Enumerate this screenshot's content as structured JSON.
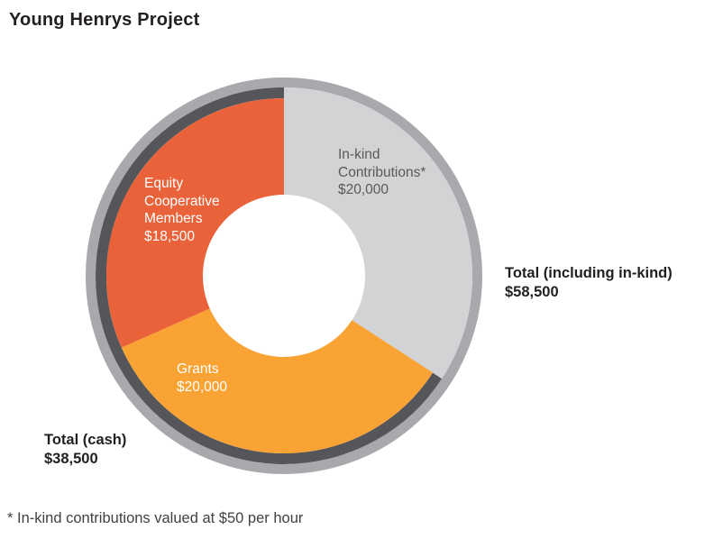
{
  "title": "Young Henrys Project",
  "chart_data": {
    "type": "pie",
    "subtype": "donut",
    "title": "Young Henrys Project",
    "start_angle_deg": 0,
    "direction": "clockwise",
    "total_including_in_kind": 58500,
    "total_cash": 38500,
    "segments": [
      {
        "name": "In-kind Contributions",
        "label_lines": [
          "In-kind",
          "Contributions*"
        ],
        "value": 20000,
        "value_label": "$20,000",
        "color": "#D1D3D4",
        "text_color": "#58595B",
        "in_cash_total": false
      },
      {
        "name": "Grants",
        "label_lines": [
          "Grants"
        ],
        "value": 20000,
        "value_label": "$20,000",
        "color": "#F8A334",
        "text_color": "#FFFFFF",
        "in_cash_total": true
      },
      {
        "name": "Equity Cooperative Members",
        "label_lines": [
          "Equity",
          "Cooperative",
          "Members"
        ],
        "value": 18500,
        "value_label": "$18,500",
        "color": "#EA6239",
        "text_color": "#FFFFFF",
        "in_cash_total": true
      }
    ],
    "rings": {
      "outer_ring_color": "#A7A9AC",
      "cash_arc_color": "#55565A",
      "hole_color": "#FFFFFF"
    }
  },
  "annotations": {
    "total_including_in_kind": [
      "Total (including in-kind)",
      "$58,500"
    ],
    "total_cash": [
      "Total (cash)",
      "$38,500"
    ],
    "footnote": "* In-kind contributions valued at $50 per hour"
  },
  "colors": {
    "title_text": "#231F20",
    "footnote_text": "#414042",
    "background": "#FFFFFF"
  }
}
